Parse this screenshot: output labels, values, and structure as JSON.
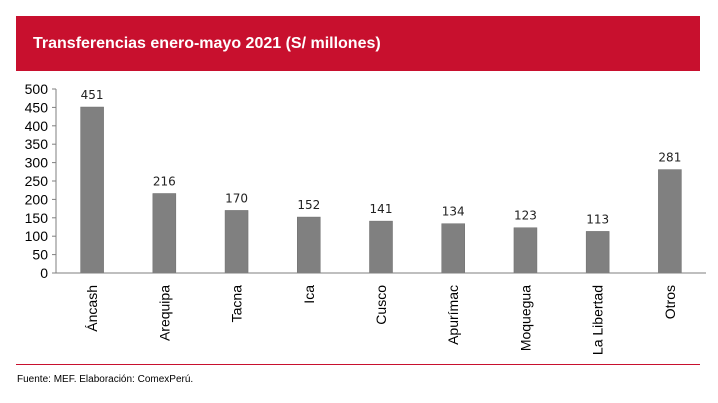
{
  "header": {
    "title": "Transferencias enero-mayo 2021 (S/ millones)"
  },
  "footer": {
    "source": "Fuente: MEF. Elaboración: ComexPerú."
  },
  "colors": {
    "header_bg": "#c8102e",
    "bar": "#808080",
    "bar_edge": "#6b6b6b",
    "axis": "#7f7f7f",
    "text": "#000000"
  },
  "chart_data": {
    "type": "bar",
    "title": "",
    "xlabel": "",
    "ylabel": "",
    "categories": [
      "Áncash",
      "Arequipa",
      "Tacna",
      "Ica",
      "Cusco",
      "Apurímac",
      "Moquegua",
      "La Libertad",
      "Otros"
    ],
    "values": [
      451,
      216,
      170,
      152,
      141,
      134,
      123,
      113,
      281
    ],
    "data_labels": [
      "451",
      "216",
      "170",
      "152",
      "141",
      "134",
      "123",
      "113",
      "281"
    ],
    "ylim": [
      0,
      500
    ],
    "yticks": [
      0,
      50,
      100,
      150,
      200,
      250,
      300,
      350,
      400,
      450,
      500
    ],
    "ytick_labels": [
      "0",
      "50",
      "100",
      "150",
      "200",
      "250",
      "300",
      "350",
      "400",
      "450",
      "500"
    ],
    "grid": false,
    "legend": "none",
    "xtick_rotation": "vertical"
  }
}
